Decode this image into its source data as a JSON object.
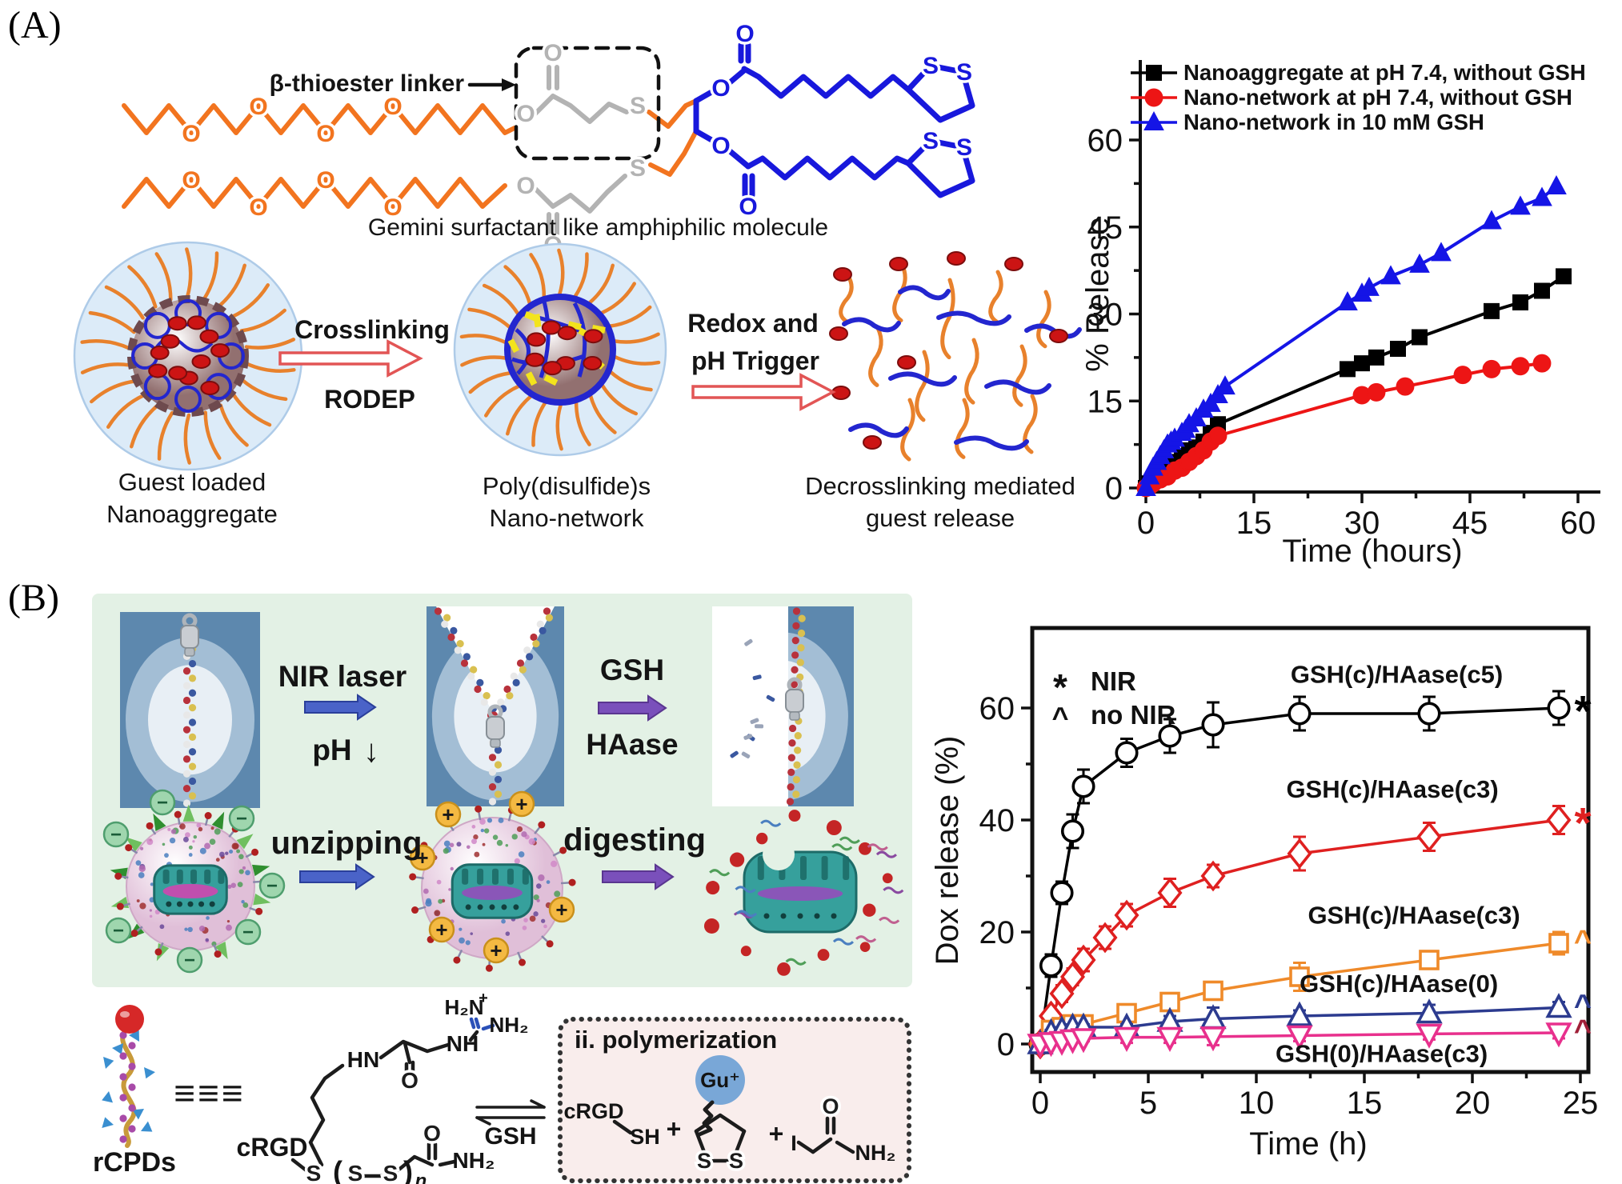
{
  "figure": {
    "panel_a": {
      "label": "(A)",
      "chem": {
        "beta_label": "β-thioester linker",
        "caption": "Gemini surfactant like amphiphilic molecule",
        "atom_o": "O",
        "atom_s": "S"
      },
      "scheme": {
        "step1_caption": [
          "Guest loaded",
          "Nanoaggregate"
        ],
        "arrow1": [
          "Crosslinking",
          "RODEP"
        ],
        "step2_caption": [
          "Poly(disulfide)s",
          "Nano-network"
        ],
        "arrow2": [
          "Redox and",
          "pH Trigger"
        ],
        "step3_caption": [
          "Decrosslinking mediated",
          "guest release"
        ]
      }
    },
    "panel_b": {
      "label": "(B)",
      "labels": {
        "nir": "NIR laser",
        "ph": "pH",
        "down_arrow": "↓",
        "gsh": "GSH",
        "haase": "HAase",
        "unzipping": "unzipping",
        "digesting": "digesting",
        "minus": "−",
        "plus": "+"
      },
      "bottom": {
        "rcpds": "rCPDs",
        "equiv": "≡≡≡",
        "crgd": "cRGD",
        "gsh": "GSH",
        "hn": "HN",
        "o": "O",
        "nh2": "NH₂",
        "h2n": "H₂N",
        "charge_plus": "+",
        "nh": "NH",
        "s": "S",
        "paren_open": "(",
        "paren_close": ")",
        "n_sub": "n",
        "box_title": "ii. polymerization",
        "sh": "SH",
        "plus": "+",
        "gu": "Gu⁺",
        "iodo": "I"
      }
    }
  },
  "chart_data": [
    {
      "type": "line",
      "title": "",
      "xlabel": "Time (hours)",
      "ylabel": "% Release",
      "xlim": [
        0,
        60
      ],
      "ylim": [
        0,
        60
      ],
      "xticks": [
        0,
        15,
        30,
        45,
        60
      ],
      "yticks": [
        0,
        15,
        30,
        45,
        60
      ],
      "grid": false,
      "legend_position": "top-left",
      "series": [
        {
          "name": "Nanoaggregate at pH 7.4, without GSH",
          "color": "#000000",
          "marker": "square",
          "open": false,
          "x": [
            0,
            0.5,
            1,
            2,
            3,
            4,
            5,
            6,
            7,
            8,
            9,
            10,
            28,
            30,
            32,
            35,
            38,
            48,
            52,
            55,
            58
          ],
          "y": [
            0,
            0.8,
            1.5,
            2.5,
            3.5,
            4.5,
            5.5,
            6.5,
            7,
            8,
            9.5,
            11,
            20.5,
            21.5,
            22.5,
            24,
            26,
            30.5,
            32,
            34,
            36.5
          ]
        },
        {
          "name": "Nano-network at pH 7.4, without GSH",
          "color": "#ed1515",
          "marker": "circle",
          "open": false,
          "x": [
            0,
            0.5,
            1,
            2,
            3,
            4,
            5,
            6,
            7,
            8,
            9,
            10,
            30,
            32,
            36,
            44,
            48,
            52,
            55
          ],
          "y": [
            0,
            0.3,
            0.8,
            1.5,
            2,
            3,
            3.5,
            4.5,
            5.5,
            6.5,
            8,
            9,
            16,
            16.5,
            17.5,
            19.5,
            20.5,
            21,
            21.5
          ]
        },
        {
          "name": "Nano-network in 10 mM GSH",
          "color": "#1515e6",
          "marker": "triangle-up",
          "open": false,
          "x": [
            0,
            0.5,
            1,
            1.5,
            2,
            2.5,
            3,
            3.5,
            4,
            5,
            5.5,
            6,
            7,
            8,
            9,
            10,
            11,
            28,
            30,
            31,
            34,
            38,
            41,
            48,
            52,
            55,
            57
          ],
          "y": [
            0,
            2,
            3.5,
            4.5,
            5.5,
            6.5,
            7.5,
            8,
            8.5,
            9.5,
            10,
            11,
            12,
            13.5,
            14.5,
            16,
            17.5,
            32,
            33.5,
            34.5,
            36.5,
            38.5,
            40.5,
            46,
            48.5,
            50,
            52
          ]
        }
      ]
    },
    {
      "type": "line",
      "title": "",
      "xlabel": "Time (h)",
      "ylabel": "Dox release (%)",
      "xlim": [
        0,
        25
      ],
      "ylim": [
        0,
        60
      ],
      "xticks": [
        0,
        5,
        10,
        15,
        20,
        25
      ],
      "yticks": [
        0,
        20,
        40,
        60
      ],
      "grid": false,
      "marker_legend": [
        {
          "symbol": "*",
          "label": "NIR"
        },
        {
          "symbol": "^",
          "label": "no NIR"
        }
      ],
      "series": [
        {
          "name": "GSH(c)/HAase(c5)",
          "color": "#000000",
          "marker": "circle",
          "open": true,
          "end_symbol": "*",
          "end_color": "#000000",
          "label_xy": [
            16.5,
            64.5
          ],
          "x": [
            0,
            0.5,
            1,
            1.5,
            2,
            4,
            6,
            8,
            12,
            18,
            24
          ],
          "y": [
            0,
            14,
            27,
            38,
            46,
            52,
            55,
            57,
            59,
            59,
            60
          ],
          "err": [
            1,
            2,
            2,
            3,
            3,
            2.5,
            3,
            4,
            3,
            3,
            3
          ]
        },
        {
          "name": "GSH(c)/HAase(c3)",
          "color": "#df2020",
          "marker": "diamond",
          "open": true,
          "end_symbol": "*",
          "end_color": "#df2020",
          "label_xy": [
            16.3,
            44
          ],
          "x": [
            0,
            0.5,
            1,
            1.5,
            2,
            3,
            4,
            6,
            8,
            12,
            18,
            24
          ],
          "y": [
            0,
            5,
            9,
            12,
            15,
            19,
            23,
            27,
            30,
            34,
            37,
            40
          ],
          "err": [
            0.5,
            1,
            1.5,
            1.5,
            2,
            2,
            2,
            2.5,
            2,
            3,
            2.5,
            2.5
          ]
        },
        {
          "name": "GSH(c)/HAase(c3)",
          "color": "#ef8a2a",
          "marker": "square",
          "open": true,
          "end_symbol": "^",
          "end_color": "#ef8a2a",
          "label_xy": [
            17.3,
            21.5
          ],
          "x": [
            0,
            0.5,
            1,
            1.5,
            2,
            4,
            6,
            8,
            12,
            18,
            24
          ],
          "y": [
            0,
            2.5,
            3,
            3.5,
            3.5,
            5.5,
            7.5,
            9.5,
            12,
            15,
            18
          ],
          "err": [
            0.3,
            0.5,
            0.5,
            0.5,
            0.5,
            1.5,
            1.5,
            1.5,
            2.5,
            1.5,
            2
          ]
        },
        {
          "name": "GSH(c)/HAase(0)",
          "color": "#2c3b8f",
          "marker": "triangle-up",
          "open": true,
          "end_symbol": "^",
          "end_color": "#2c3b8f",
          "label_xy": [
            16.6,
            9.3
          ],
          "x": [
            0,
            0.5,
            1,
            1.5,
            2,
            4,
            6,
            8,
            12,
            18,
            24
          ],
          "y": [
            0,
            2,
            2.5,
            3,
            3,
            3,
            4,
            4.5,
            5,
            5.5,
            6.5
          ],
          "err": [
            0.3,
            0.5,
            0.5,
            0.5,
            0.5,
            0.5,
            1,
            2,
            1,
            1.5,
            1
          ]
        },
        {
          "name": "GSH(0)/HAase(c3)",
          "color": "#e8308d",
          "marker": "triangle-down",
          "open": true,
          "end_symbol": "^",
          "end_color": "#a02038",
          "label_xy": [
            15.8,
            -3.2
          ],
          "x": [
            0,
            0.5,
            1,
            1.5,
            2,
            4,
            6,
            8,
            12,
            18,
            24
          ],
          "y": [
            0,
            0.3,
            0.5,
            0.8,
            1,
            1.2,
            1.2,
            1.3,
            1.5,
            1.8,
            2
          ],
          "err": [
            0.3,
            0.5,
            0.5,
            0.5,
            0.5,
            1,
            1,
            1.5,
            1,
            1,
            1
          ]
        }
      ]
    }
  ]
}
